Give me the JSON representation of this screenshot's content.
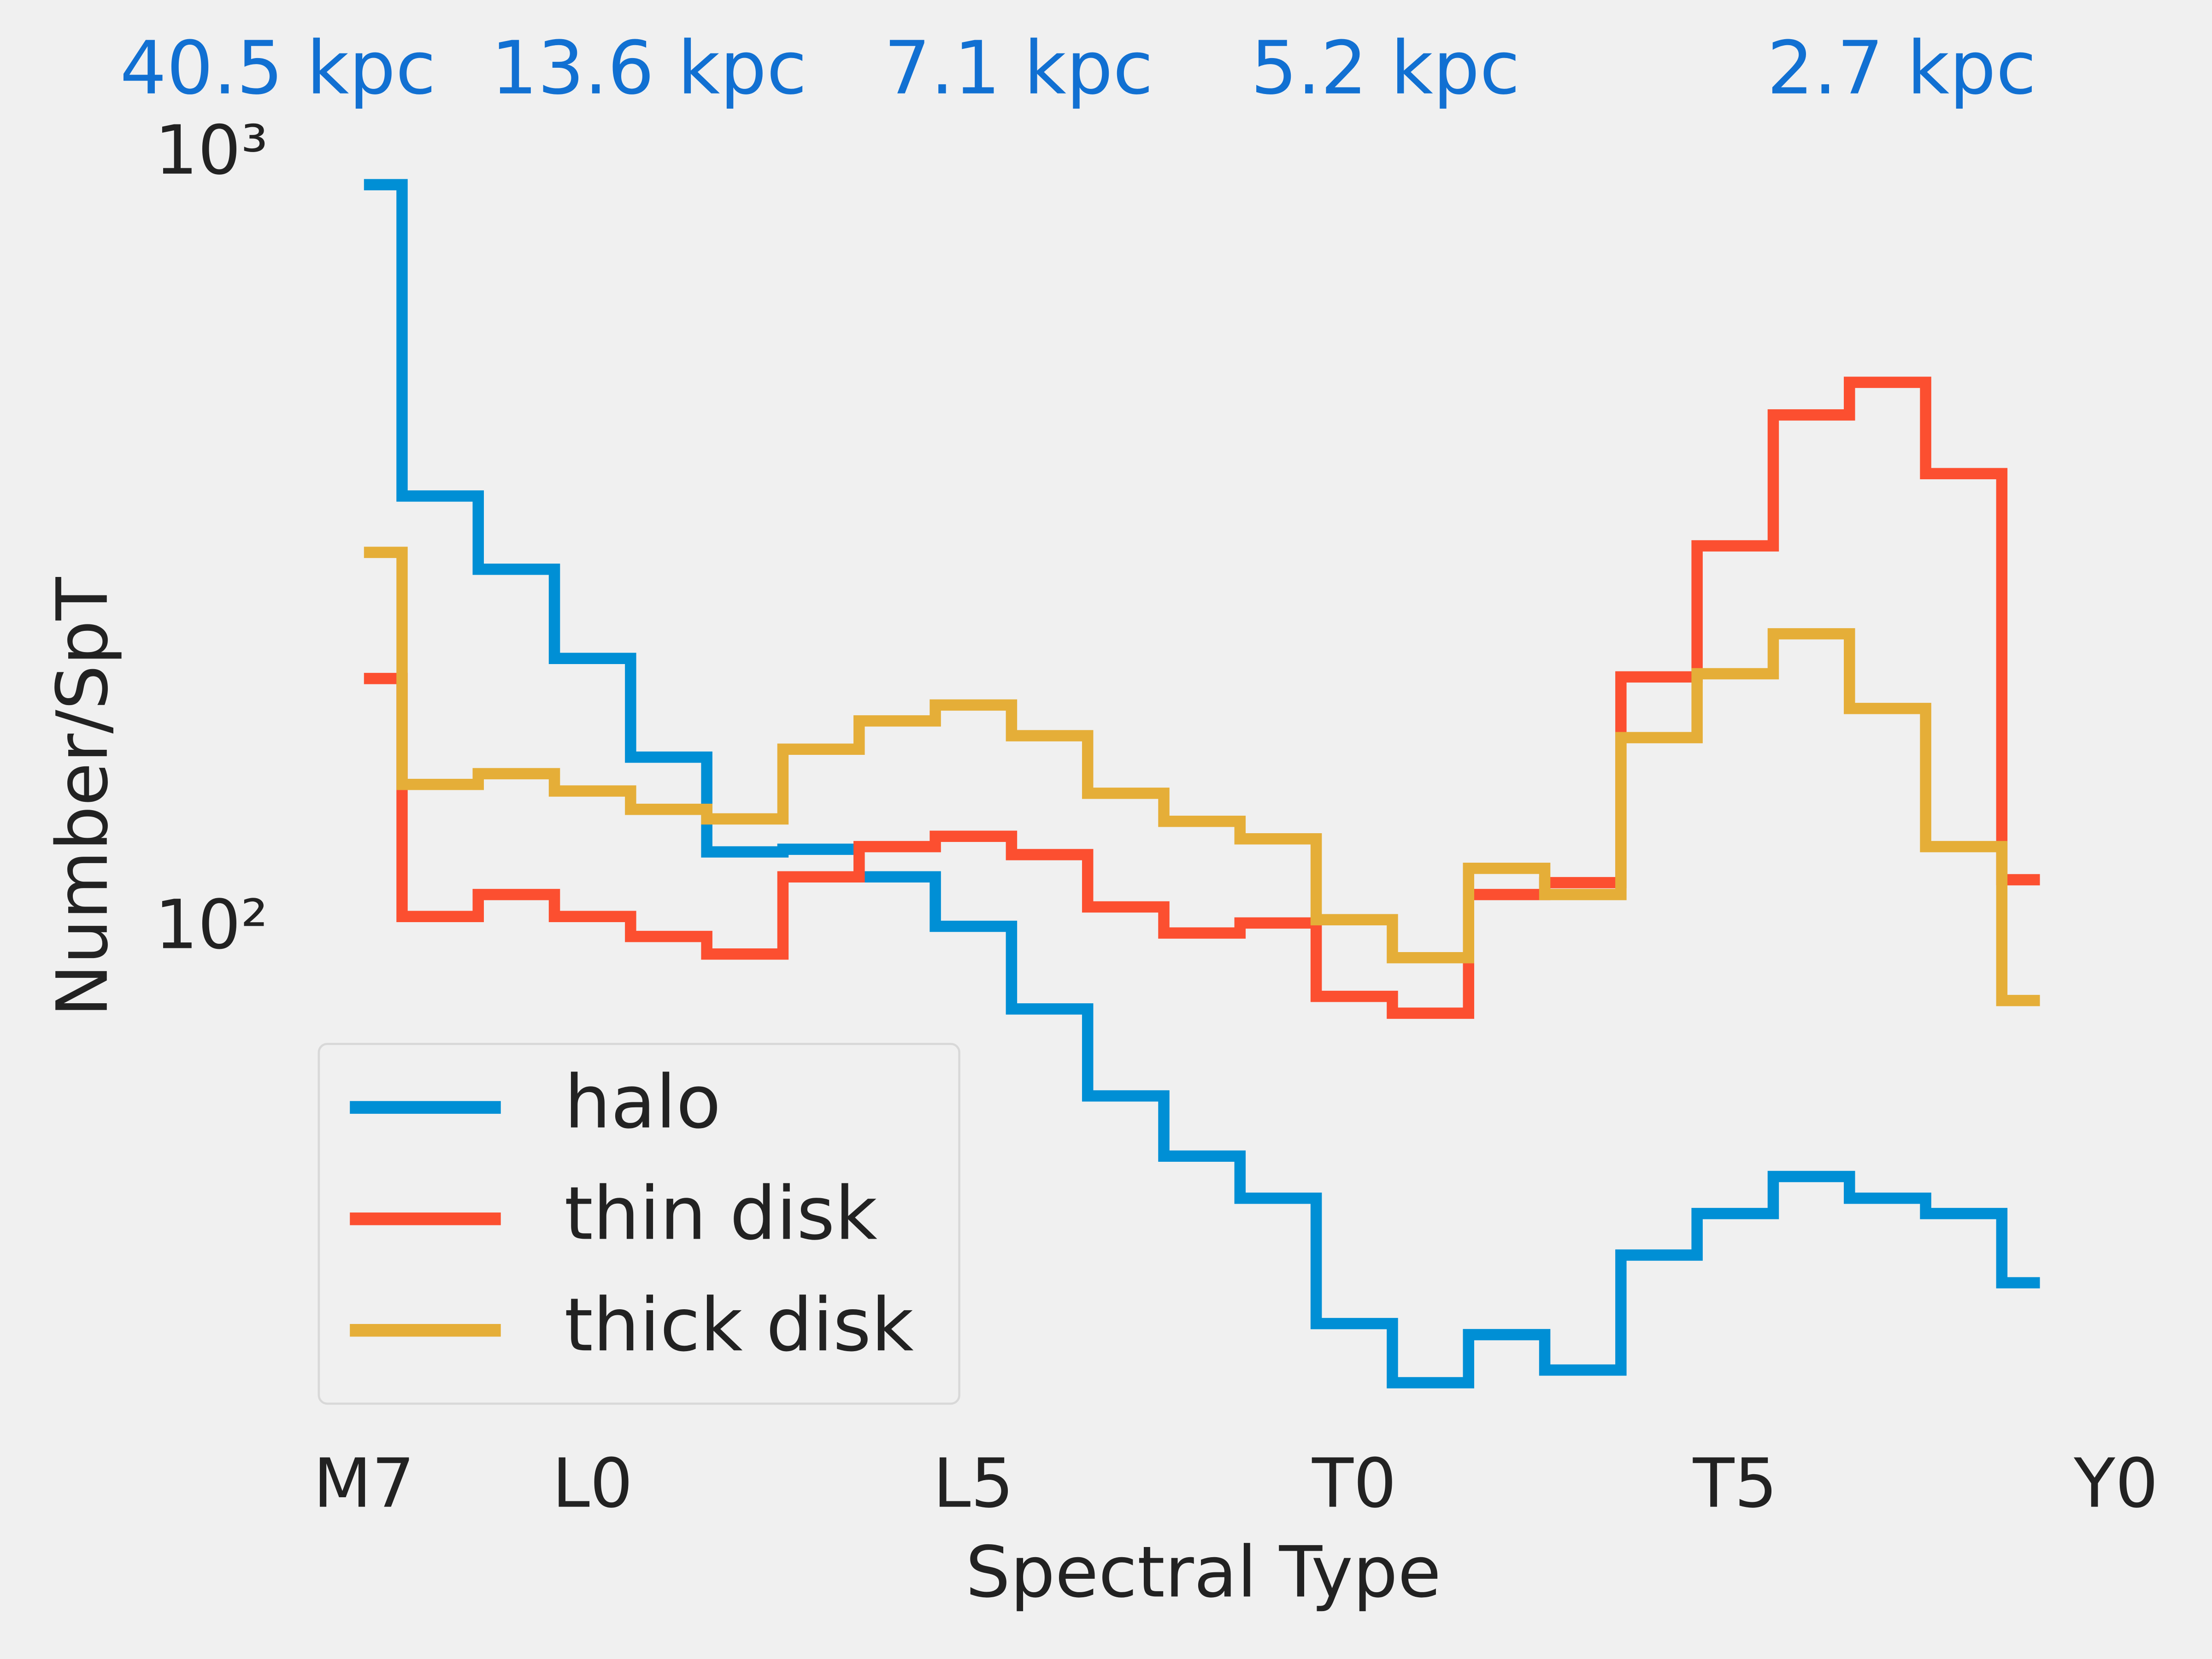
{
  "chart_data": {
    "type": "step",
    "xlabel": "Spectral Type",
    "ylabel": "Number/SpT",
    "annotations": [
      "40.5 kpc",
      "13.6 kpc",
      "7.1 kpc",
      "5.2 kpc",
      "2.7 kpc"
    ],
    "annotation_color": "#1170d2",
    "x": [
      17,
      18,
      19,
      20,
      21,
      22,
      23,
      24,
      25,
      26,
      27,
      28,
      29,
      30,
      31,
      32,
      33,
      34,
      35,
      36,
      37,
      38,
      39
    ],
    "series": [
      {
        "name": "halo",
        "color": "#008fd5",
        "values": [
          916,
          363,
          292,
          224,
          167,
          126,
          127,
          117,
          101,
          79,
          61,
          51,
          45,
          31,
          26,
          30,
          27,
          38,
          43,
          48,
          45,
          43,
          35
        ]
      },
      {
        "name": "thin disk",
        "color": "#fc4f30",
        "values": [
          211,
          104,
          111,
          104,
          98,
          93,
          117,
          128,
          132,
          125,
          107,
          99,
          102,
          82,
          78,
          111,
          115,
          212,
          313,
          462,
          509,
          388,
          116
        ]
      },
      {
        "name": "thick disk",
        "color": "#e5ae38",
        "values": [
          307,
          154,
          159,
          151,
          143,
          139,
          171,
          186,
          195,
          178,
          150,
          138,
          131,
          103,
          92,
          120,
          111,
          177,
          214,
          241,
          193,
          128,
          81
        ]
      }
    ],
    "xlim": [
      17,
      40
    ],
    "xticks": [
      {
        "value": 17,
        "label": "M7"
      },
      {
        "value": 20,
        "label": "L0"
      },
      {
        "value": 25,
        "label": "L5"
      },
      {
        "value": 30,
        "label": "T0"
      },
      {
        "value": 35,
        "label": "T5"
      },
      {
        "value": 40,
        "label": "Y0"
      }
    ],
    "ylim": [
      22,
      1000
    ],
    "ylog": true,
    "yticks": [
      {
        "value": 100,
        "label": "10²"
      },
      {
        "value": 1000,
        "label": "10³"
      }
    ],
    "grid": false,
    "legend": "lower left"
  }
}
